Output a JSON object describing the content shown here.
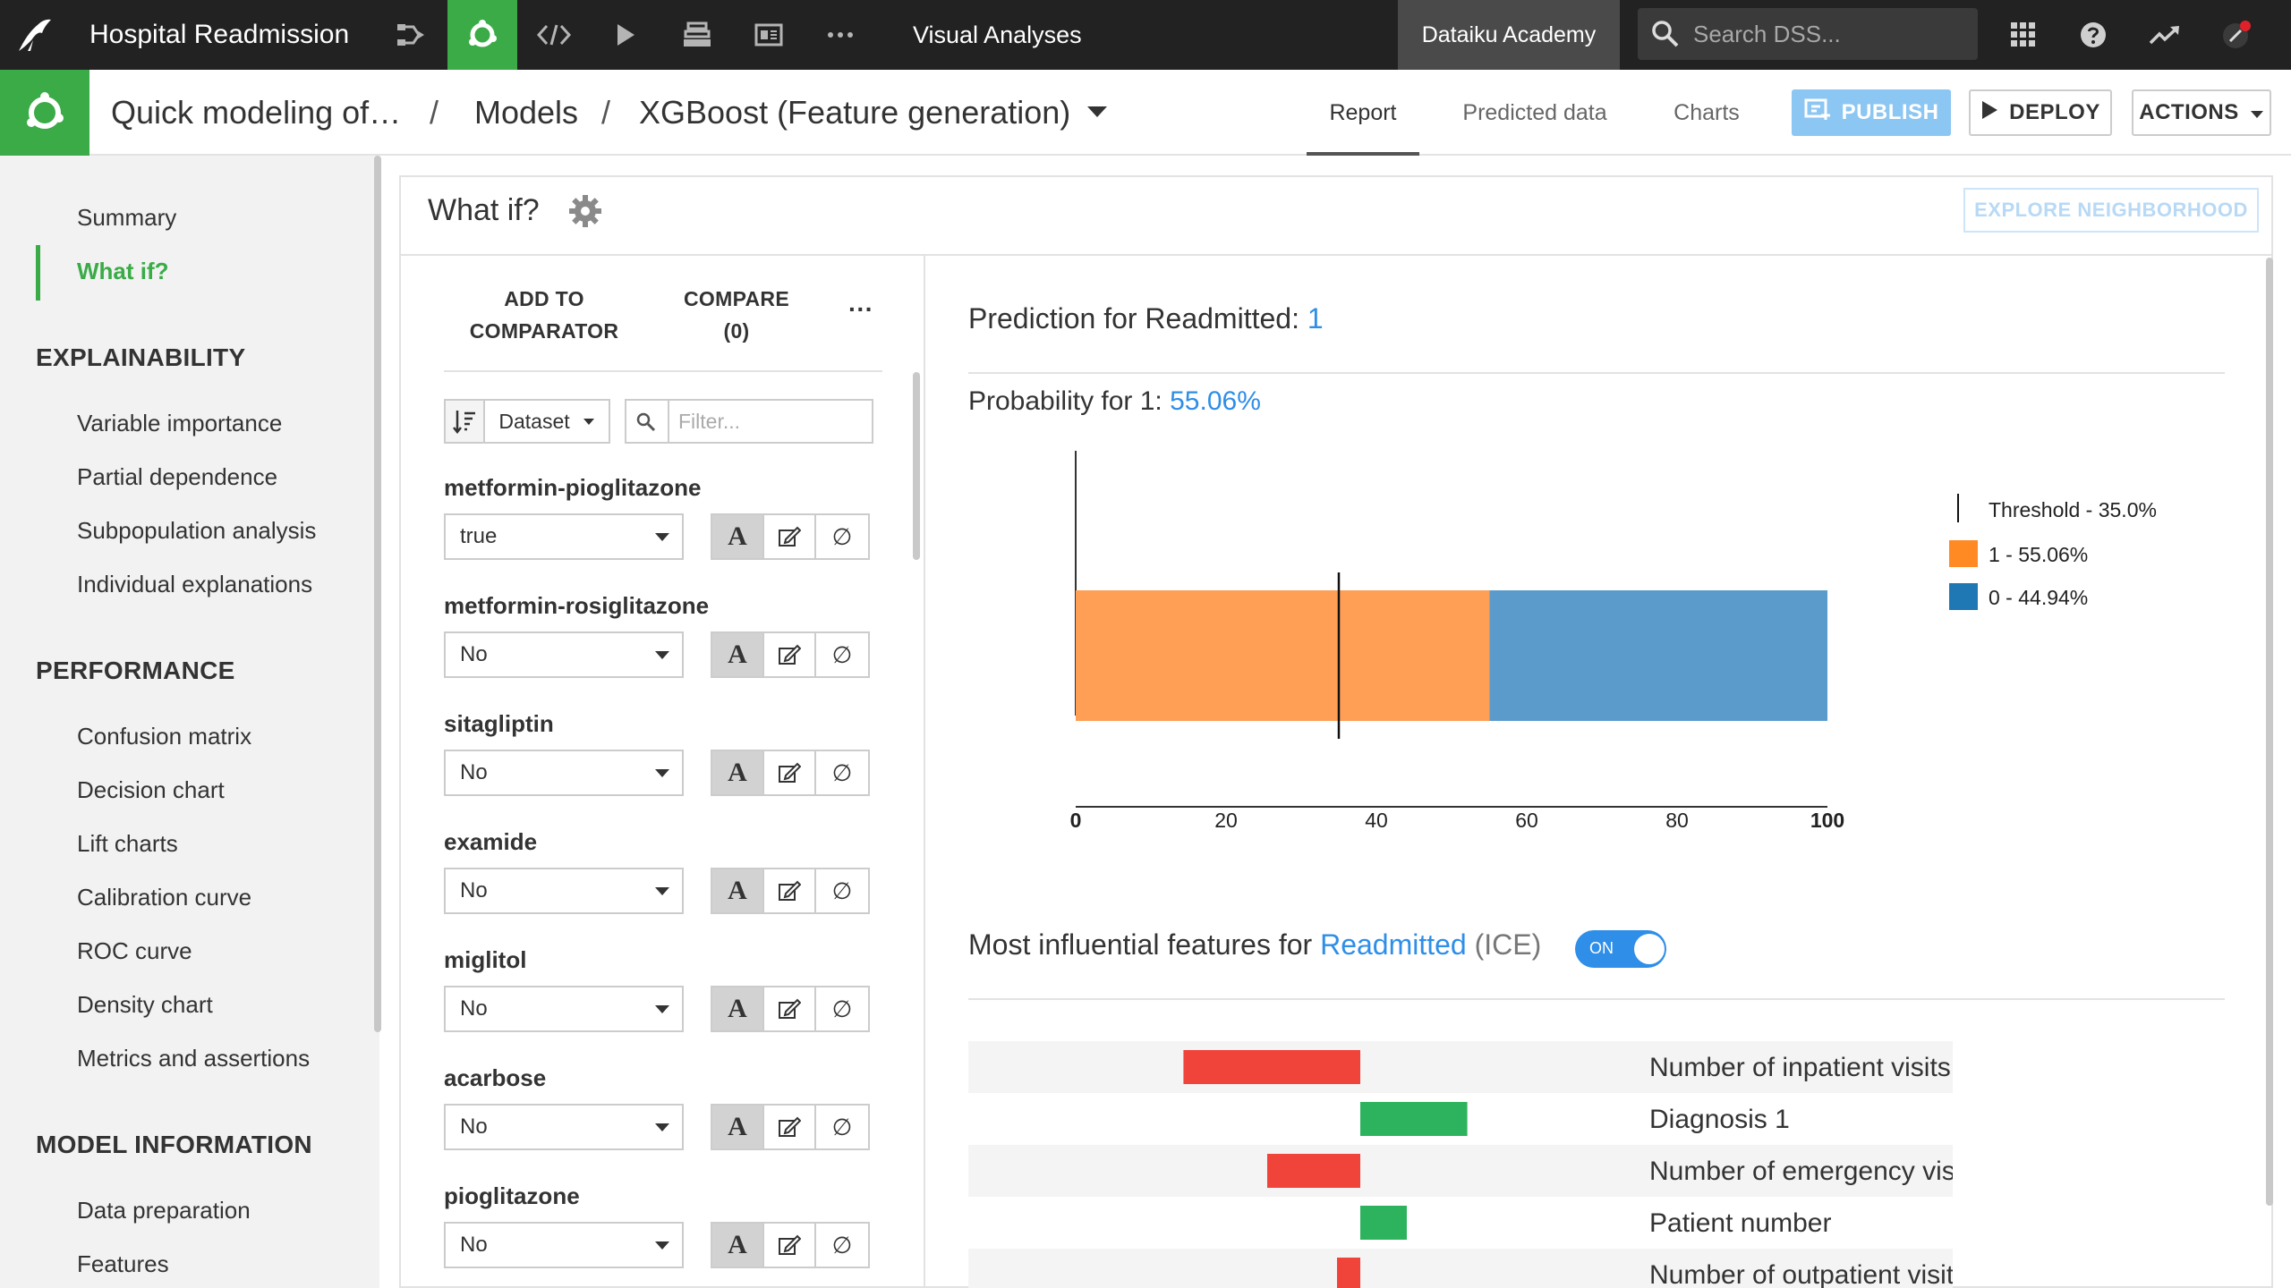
{
  "topnav": {
    "project_name": "Hospital Readmission",
    "visual_analyses": "Visual Analyses",
    "academy": "Dataiku Academy",
    "search_placeholder": "Search DSS...",
    "icons": [
      "flow-icon",
      "lab-icon",
      "code-icon",
      "run-icon",
      "datasets-icon",
      "dashboard-icon",
      "more-icon",
      "apps-grid-icon",
      "help-icon",
      "activity-icon",
      "notifications-icon"
    ]
  },
  "header": {
    "crumb_analysis": "Quick modeling of…",
    "crumb_models": "Models",
    "crumb_model": "XGBoost (Feature generation)",
    "tabs": [
      "Report",
      "Predicted data",
      "Charts"
    ],
    "active_tab": "Report",
    "publish": "PUBLISH",
    "deploy": "DEPLOY",
    "actions": "ACTIONS"
  },
  "sidebar": {
    "summary": "Summary",
    "whatif": "What if?",
    "sec_explain": "EXPLAINABILITY",
    "explain_items": [
      "Variable importance",
      "Partial dependence",
      "Subpopulation analysis",
      "Individual explanations"
    ],
    "sec_perf": "PERFORMANCE",
    "perf_items": [
      "Confusion matrix",
      "Decision chart",
      "Lift charts",
      "Calibration curve",
      "ROC curve",
      "Density chart",
      "Metrics and assertions"
    ],
    "sec_model": "MODEL INFORMATION",
    "model_items": [
      "Data preparation",
      "Features"
    ]
  },
  "whatif": {
    "title": "What if?",
    "explore": "EXPLORE NEIGHBORHOOD",
    "add_l1": "ADD TO",
    "add_l2": "COMPARATOR",
    "cmp_l1": "COMPARE",
    "cmp_l2": "(0)",
    "more": "···",
    "dataset": "Dataset",
    "filter_placeholder": "Filter...",
    "features": [
      {
        "name": "metformin-pioglitazone",
        "value": "true"
      },
      {
        "name": "metformin-rosiglitazone",
        "value": "No"
      },
      {
        "name": "sitagliptin",
        "value": "No"
      },
      {
        "name": "examide",
        "value": "No"
      },
      {
        "name": "miglitol",
        "value": "No"
      },
      {
        "name": "acarbose",
        "value": "No"
      },
      {
        "name": "pioglitazone",
        "value": "No"
      }
    ],
    "btn_text": "A",
    "btn_null": "∅"
  },
  "prediction": {
    "label": "Prediction for Readmitted:",
    "value": "1",
    "prob_label": "Probability for 1:",
    "prob_value": "55.06%",
    "influential_label": "Most influential features for",
    "influential_target": "Readmitted",
    "influential_suffix": "(ICE)",
    "toggle": "ON"
  },
  "chart_data": [
    {
      "type": "bar",
      "orientation": "horizontal-stacked",
      "series": [
        {
          "name": "1 - 55.06%",
          "values": [
            55.06
          ],
          "color": "#ff9e55"
        },
        {
          "name": "0 - 44.94%",
          "values": [
            44.94
          ],
          "color": "#5b9bcc"
        }
      ],
      "threshold": {
        "label": "Threshold - 35.0%",
        "value": 35.0
      },
      "xlim": [
        0,
        100
      ],
      "xticks": [
        "0",
        "20",
        "40",
        "60",
        "80",
        "100"
      ],
      "legend_colors": [
        "#ff8a24",
        "#1f77b4"
      ],
      "legend_position": "right"
    },
    {
      "type": "bar",
      "orientation": "horizontal-diverging",
      "categories": [
        "Number of inpatient visits",
        "Diagnosis 1",
        "Number of emergency visits",
        "Patient number",
        "Number of outpatient visits"
      ],
      "values": [
        -0.19,
        0.115,
        -0.1,
        0.05,
        -0.025
      ],
      "colors": {
        "negative": "#f0433a",
        "positive": "#2db35d"
      }
    }
  ]
}
